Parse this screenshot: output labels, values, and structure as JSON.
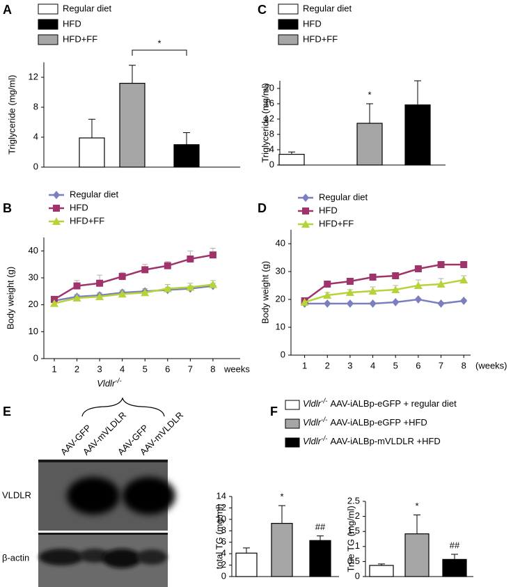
{
  "chart_data": [
    {
      "type": "bar",
      "panel_label": "A",
      "ylabel": "Triglyceride (mg/ml)",
      "categories": [
        null,
        null,
        null
      ],
      "series": [
        {
          "name": "Regular diet",
          "color": "#ffffff",
          "values": [
            3.9,
            null,
            null
          ],
          "errors": [
            2.5,
            null,
            null
          ]
        },
        {
          "name": "HFD",
          "color": "#000000",
          "values": [
            null,
            null,
            3.0
          ],
          "errors": [
            null,
            null,
            1.6
          ]
        },
        {
          "name": "HFD+FF",
          "color": "#a6a6a6",
          "values": [
            null,
            11.2,
            null
          ],
          "errors": [
            null,
            2.4,
            null
          ]
        }
      ],
      "ylim": [
        0,
        14
      ],
      "yticks": [
        0,
        4,
        8,
        12
      ],
      "legend": true,
      "annotations": [
        {
          "text": "*",
          "categories": [
            1,
            2
          ]
        }
      ]
    },
    {
      "type": "bar",
      "panel_label": "C",
      "ylabel": "Triglyceride (mg/ml)",
      "categories": [
        null,
        null,
        null
      ],
      "series": [
        {
          "name": "Regular diet",
          "color": "#ffffff",
          "values": [
            2.8,
            null,
            null
          ],
          "errors": [
            0.6,
            null,
            null
          ]
        },
        {
          "name": "HFD",
          "color": "#000000",
          "values": [
            null,
            null,
            15.7
          ],
          "errors": [
            null,
            null,
            6.3
          ]
        },
        {
          "name": "HFD+FF",
          "color": "#a6a6a6",
          "values": [
            null,
            10.9,
            null
          ],
          "errors": [
            null,
            5.1,
            null
          ]
        }
      ],
      "ylim": [
        0,
        22
      ],
      "yticks": [
        0,
        4,
        8,
        12,
        16,
        20
      ],
      "legend": true,
      "annotations": [
        {
          "text": "*",
          "categories": [
            1
          ]
        }
      ]
    },
    {
      "type": "line",
      "panel_label": "B",
      "ylabel": "Body weight (g)",
      "xlabel": "weeks",
      "x": [
        1,
        2,
        3,
        4,
        5,
        6,
        7,
        8
      ],
      "xticks": [
        1,
        2,
        3,
        4,
        5,
        6,
        7,
        8
      ],
      "xlim": [
        0.54,
        9.2
      ],
      "series": [
        {
          "name": "Regular diet",
          "color": "#7b7fbf",
          "marker": "diamond",
          "values": [
            21.5,
            23,
            23.5,
            24.5,
            25,
            25.5,
            26,
            27
          ],
          "errors": [
            0.8,
            0.8,
            1,
            1,
            1,
            1,
            1,
            1
          ]
        },
        {
          "name": "HFD",
          "color": "#a0336b",
          "marker": "square",
          "values": [
            22,
            27,
            28,
            30.5,
            33,
            34.5,
            37,
            38.5
          ],
          "errors": [
            0.8,
            2,
            3,
            1.5,
            2,
            1.5,
            3,
            2.5
          ]
        },
        {
          "name": "HFD+FF",
          "color": "#b6d43a",
          "marker": "triangle",
          "values": [
            20.5,
            22.5,
            23,
            24,
            24.5,
            26,
            26.5,
            27.5
          ],
          "errors": [
            0.8,
            1,
            1,
            1,
            1,
            1.5,
            1.5,
            1.5
          ]
        }
      ],
      "ylim": [
        0,
        45
      ],
      "yticks": [
        0,
        10,
        20,
        30,
        40
      ],
      "legend": true
    },
    {
      "type": "line",
      "panel_label": "D",
      "ylabel": "Body weight (g)",
      "xlabel": "(weeks)",
      "x": [
        1,
        2,
        3,
        4,
        5,
        6,
        7,
        8
      ],
      "xticks": [
        1,
        2,
        3,
        4,
        5,
        6,
        7,
        8
      ],
      "xlim": [
        0.4,
        8.3
      ],
      "series": [
        {
          "name": "Regular diet",
          "color": "#7b7fbf",
          "marker": "diamond",
          "values": [
            18.5,
            18.5,
            18.5,
            18.5,
            19,
            20,
            18.5,
            19.5
          ],
          "errors": [
            0.5,
            0.5,
            0.5,
            0.5,
            0.5,
            0.5,
            0.5,
            0.5
          ]
        },
        {
          "name": "HFD",
          "color": "#a0336b",
          "marker": "square",
          "values": [
            19.5,
            25.5,
            26.5,
            28,
            28.5,
            31,
            32.5,
            32.5
          ],
          "errors": [
            0.8,
            1,
            1,
            1,
            1,
            1,
            1,
            1
          ]
        },
        {
          "name": "HFD+FF",
          "color": "#b6d43a",
          "marker": "triangle",
          "values": [
            19,
            21.5,
            22.5,
            23,
            23.5,
            25,
            25.5,
            27
          ],
          "errors": [
            0.8,
            1,
            1,
            1.5,
            1.5,
            2,
            2,
            1.5
          ]
        }
      ],
      "ylim": [
        0,
        45
      ],
      "yticks": [
        0,
        10,
        20,
        30,
        40
      ],
      "legend": true
    },
    {
      "type": "bar",
      "panel_label": "F",
      "ylabel": "total TG (mg/ml)",
      "categories": [
        null,
        null,
        null
      ],
      "series": [
        {
          "name_italic": "Vldlr",
          "name_sup": "-/-",
          "name": "AAV-iALBp-eGFP + regular diet",
          "color": "#ffffff",
          "values": [
            4.1,
            null,
            null
          ],
          "errors": [
            0.9,
            null,
            null
          ]
        },
        {
          "name_italic": "Vldlr",
          "name_sup": "-/-",
          "name": "AAV-iALBp-eGFP +HFD",
          "color": "#a6a6a6",
          "values": [
            null,
            9.3,
            null
          ],
          "errors": [
            null,
            3.1,
            null
          ]
        },
        {
          "name_italic": "Vldlr",
          "name_sup": "-/-",
          "name": "AAV-iALBp-mVLDLR +HFD",
          "color": "#000000",
          "values": [
            null,
            null,
            6.3
          ],
          "errors": [
            null,
            null,
            0.8
          ]
        }
      ],
      "ylim": [
        0,
        14
      ],
      "yticks": [
        0,
        2,
        4,
        6,
        8,
        10,
        12,
        14
      ],
      "legend": true,
      "annotations": [
        {
          "text": "*",
          "categories": [
            1
          ]
        },
        {
          "text": "##",
          "categories": [
            2
          ]
        }
      ]
    },
    {
      "type": "bar",
      "ylabel": "True TG (mg/ml)",
      "categories": [
        null,
        null,
        null
      ],
      "series": [
        {
          "color": "#ffffff",
          "values": [
            0.37,
            null,
            null
          ],
          "errors": [
            0.05,
            null,
            null
          ]
        },
        {
          "color": "#a6a6a6",
          "values": [
            null,
            1.42,
            null
          ],
          "errors": [
            null,
            0.63,
            null
          ]
        },
        {
          "color": "#000000",
          "values": [
            null,
            null,
            0.57
          ],
          "errors": [
            null,
            null,
            0.17
          ]
        }
      ],
      "ylim": [
        0,
        2.5
      ],
      "yticks": [
        0,
        0.5,
        1,
        1.5,
        2,
        2.5
      ],
      "legend": false,
      "annotations": [
        {
          "text": "*",
          "categories": [
            1
          ]
        },
        {
          "text": "##",
          "categories": [
            2
          ]
        }
      ]
    }
  ],
  "blot": {
    "panel_label": "E",
    "group_label": "Vldlr",
    "group_label_sup": "-/-",
    "lanes": [
      "AAV-GFP",
      "AAV-mVLDLR",
      "AAV-GFP",
      "AAV-mVLDLR"
    ],
    "rows": [
      "VLDLR",
      "β-actin"
    ]
  }
}
